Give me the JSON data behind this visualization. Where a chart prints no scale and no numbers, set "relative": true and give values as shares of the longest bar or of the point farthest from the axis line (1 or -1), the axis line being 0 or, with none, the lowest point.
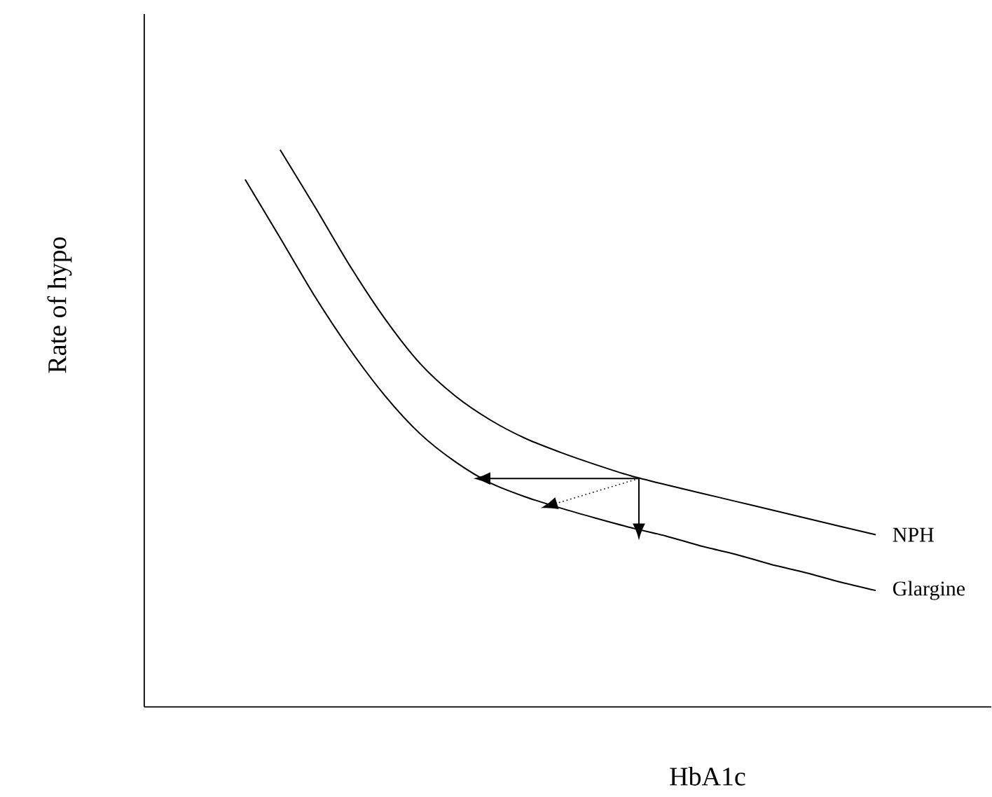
{
  "chart_data": {
    "type": "line",
    "relative": true,
    "xlabel": "HbA1c",
    "ylabel": "Rate of hypo",
    "categories": [
      null,
      null,
      null,
      null,
      null,
      null,
      null,
      null,
      null,
      null,
      null,
      null,
      null,
      null,
      null,
      null,
      null,
      null,
      null,
      null
    ],
    "series": [
      {
        "name": "NPH",
        "color": "#000000",
        "values": [
          null,
          null,
          1,
          0.897,
          0.791,
          0.696,
          0.616,
          0.558,
          0.515,
          0.482,
          0.457,
          0.435,
          0.415,
          0.399,
          0.384,
          0.369,
          0.354,
          0.339,
          0.324,
          0.309
        ]
      },
      {
        "name": "Glargine",
        "color": "#000000",
        "values": [
          null,
          0.947,
          0.842,
          0.736,
          0.641,
          0.558,
          0.49,
          0.44,
          0.402,
          0.377,
          0.357,
          0.339,
          0.322,
          0.307,
          0.289,
          0.274,
          0.256,
          0.241,
          0.224,
          0.209
        ]
      }
    ]
  }
}
